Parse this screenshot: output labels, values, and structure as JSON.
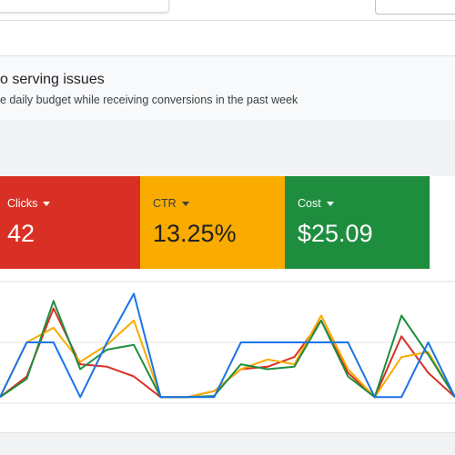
{
  "notice": {
    "title": "o serving issues",
    "description": "e daily budget while receiving conversions in the past week"
  },
  "metrics": [
    {
      "label": "Clicks",
      "value": "42",
      "color": "#d93025"
    },
    {
      "label": "CTR",
      "value": "13.25%",
      "color": "#f9ab00"
    },
    {
      "label": "Cost",
      "value": "$25.09",
      "color": "#1e8e3e"
    }
  ],
  "chart_data": {
    "type": "line",
    "grid": true,
    "series": [
      {
        "color": "#d93025",
        "values": [
          0.05,
          0.22,
          0.78,
          0.32,
          0.3,
          0.22,
          0.05,
          0.05,
          0.1,
          0.28,
          0.3,
          0.38,
          0.68,
          0.25,
          0.05,
          0.55,
          0.25,
          0.05
        ]
      },
      {
        "color": "#f9ab00",
        "values": [
          0.05,
          0.5,
          0.62,
          0.34,
          0.48,
          0.68,
          0.05,
          0.05,
          0.1,
          0.28,
          0.36,
          0.32,
          0.72,
          0.28,
          0.05,
          0.38,
          0.42,
          0.05
        ]
      },
      {
        "color": "#1e8e3e",
        "values": [
          0.05,
          0.2,
          0.84,
          0.28,
          0.44,
          0.48,
          0.05,
          0.05,
          0.06,
          0.32,
          0.28,
          0.3,
          0.68,
          0.22,
          0.05,
          0.72,
          0.4,
          0.05
        ]
      },
      {
        "color": "#1a73e8",
        "values": [
          0.05,
          0.5,
          0.5,
          0.05,
          0.5,
          0.9,
          0.05,
          0.05,
          0.05,
          0.5,
          0.5,
          0.5,
          0.5,
          0.5,
          0.05,
          0.05,
          0.5,
          0.05
        ]
      }
    ]
  }
}
